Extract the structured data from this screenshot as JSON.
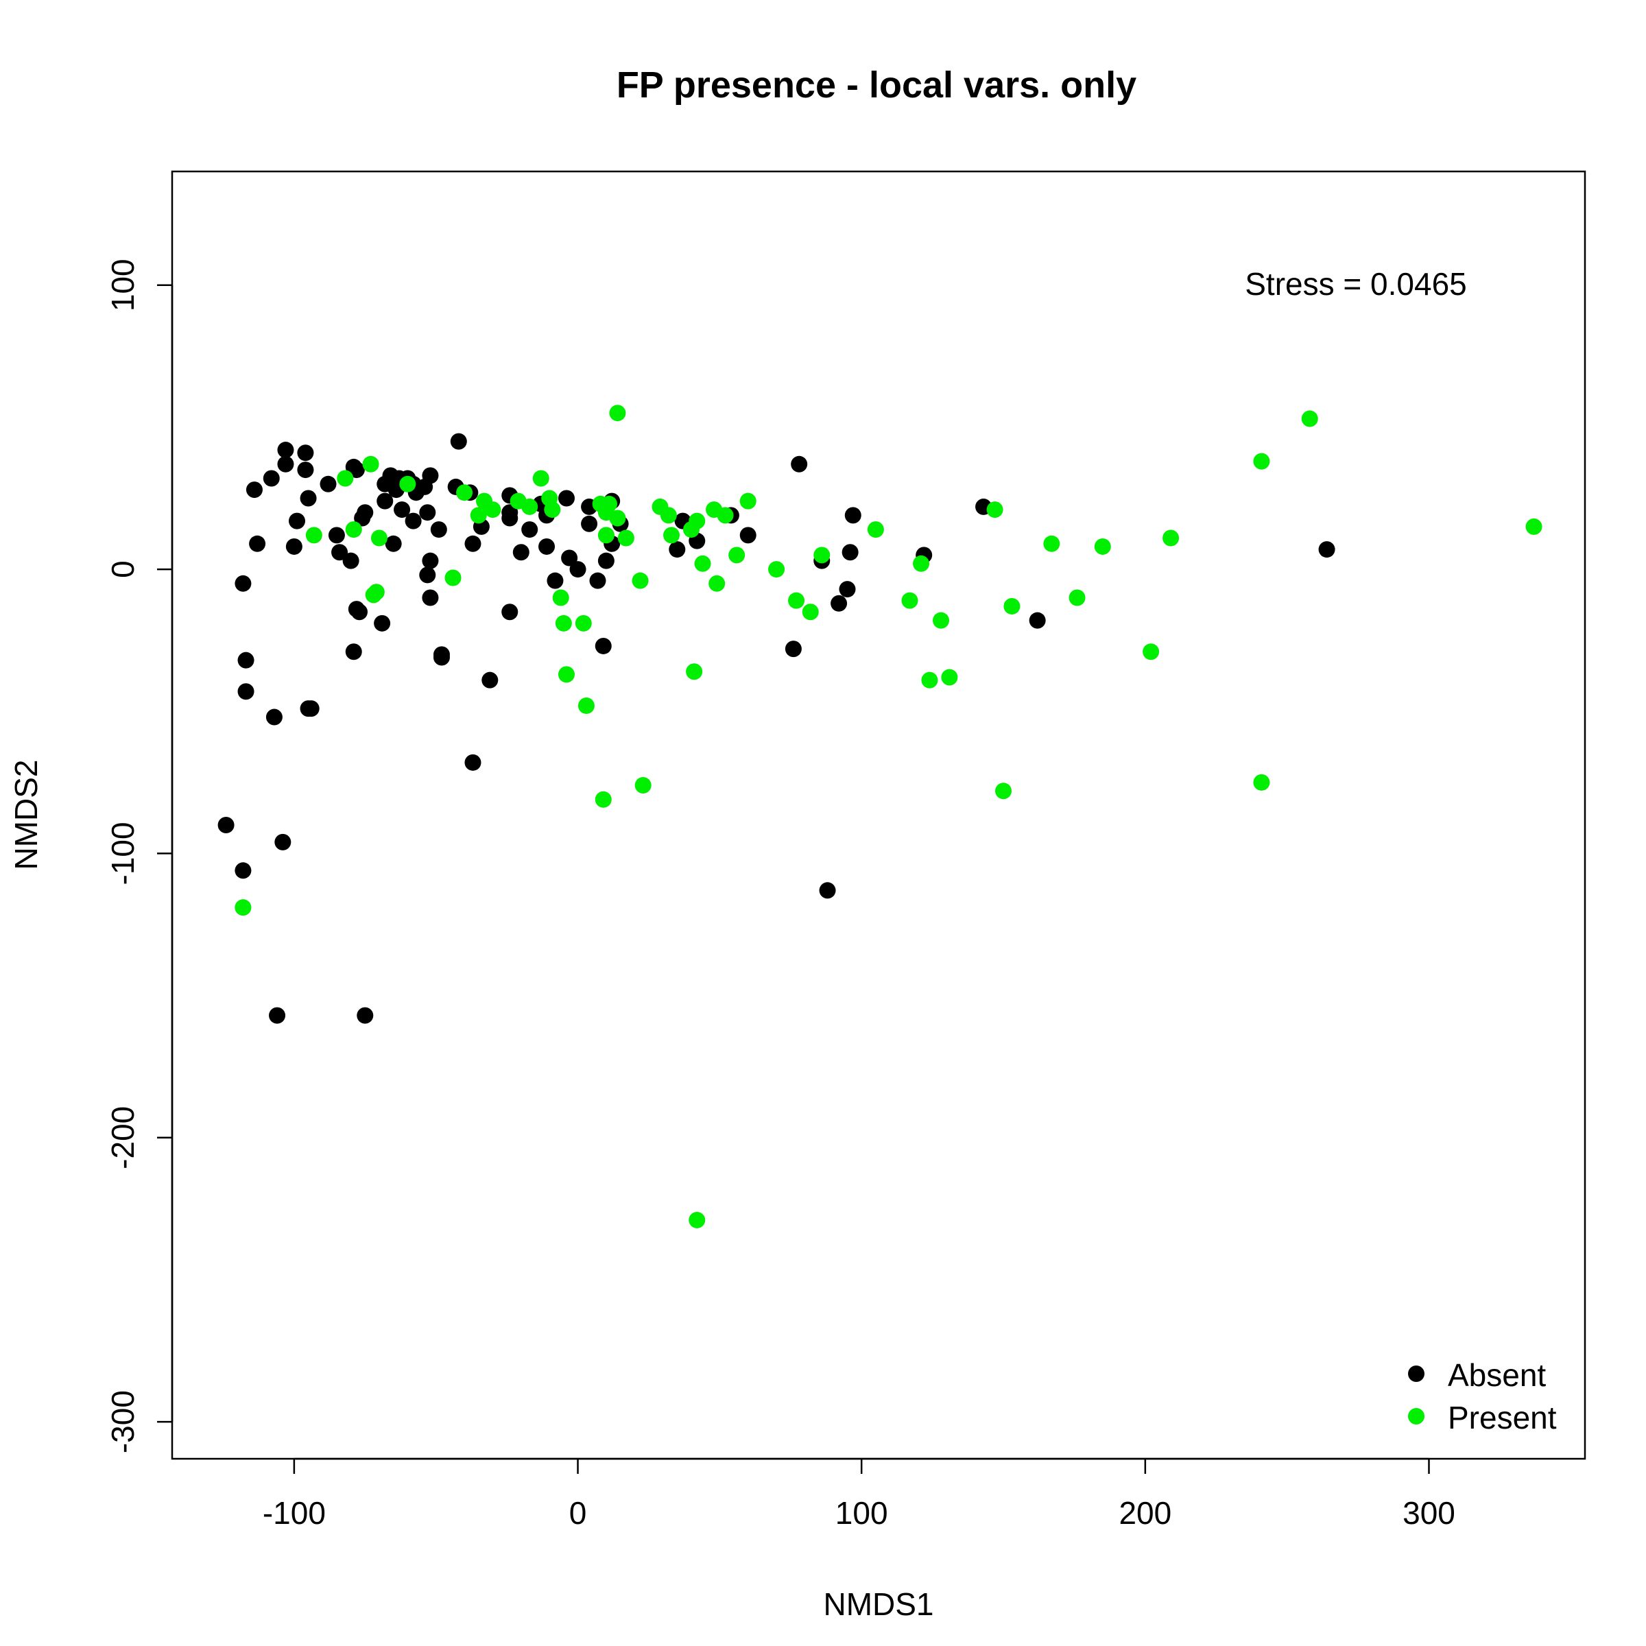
{
  "chart_data": {
    "type": "scatter",
    "title": "FP presence - local vars. only",
    "xlabel": "NMDS1",
    "ylabel": "NMDS2",
    "xlim": [
      -143,
      355
    ],
    "ylim": [
      -313,
      140
    ],
    "xticks": [
      -100,
      0,
      100,
      200,
      300
    ],
    "yticks": [
      -300,
      -200,
      -100,
      0,
      100
    ],
    "xtick_labels": [
      "-100",
      "0",
      "100",
      "200",
      "300"
    ],
    "ytick_labels": [
      "-300",
      "-200",
      "-100",
      "0",
      "100"
    ],
    "annotation": "Stress = 0.0465",
    "grid": false,
    "legend_position": "bottom-right",
    "series": [
      {
        "name": "Absent",
        "color": "#000000",
        "points": [
          [
            -103,
            42
          ],
          [
            -96,
            41
          ],
          [
            -108,
            32
          ],
          [
            -103,
            37
          ],
          [
            -96,
            35
          ],
          [
            -114,
            28
          ],
          [
            -95,
            25
          ],
          [
            -99,
            17
          ],
          [
            -113,
            9
          ],
          [
            -100,
            8
          ],
          [
            -88,
            30
          ],
          [
            -85,
            12
          ],
          [
            -80,
            3
          ],
          [
            -84,
            6
          ],
          [
            -78,
            35
          ],
          [
            -76,
            18
          ],
          [
            -75,
            20
          ],
          [
            -79,
            36
          ],
          [
            -68,
            30
          ],
          [
            -66,
            33
          ],
          [
            -64,
            28
          ],
          [
            -68,
            24
          ],
          [
            -63,
            32
          ],
          [
            -60,
            32
          ],
          [
            -58,
            30
          ],
          [
            -57,
            27
          ],
          [
            -62,
            21
          ],
          [
            -58,
            17
          ],
          [
            -54,
            29
          ],
          [
            -53,
            20
          ],
          [
            -52,
            33
          ],
          [
            -49,
            14
          ],
          [
            -65,
            9
          ],
          [
            -52,
            3
          ],
          [
            -53,
            -2
          ],
          [
            -52,
            -10
          ],
          [
            -48,
            -30
          ],
          [
            -48,
            -31
          ],
          [
            -42,
            45
          ],
          [
            -43,
            29
          ],
          [
            -38,
            27
          ],
          [
            -34,
            15
          ],
          [
            -37,
            9
          ],
          [
            -31,
            -39
          ],
          [
            -37,
            -68
          ],
          [
            -24,
            26
          ],
          [
            -24,
            20
          ],
          [
            -24,
            18
          ],
          [
            -17,
            14
          ],
          [
            -20,
            6
          ],
          [
            -13,
            23
          ],
          [
            -11,
            19
          ],
          [
            -11,
            8
          ],
          [
            -8,
            -4
          ],
          [
            -4,
            25
          ],
          [
            -3,
            4
          ],
          [
            0,
            0
          ],
          [
            4,
            22
          ],
          [
            4,
            16
          ],
          [
            7,
            -4
          ],
          [
            9,
            -27
          ],
          [
            10,
            3
          ],
          [
            12,
            24
          ],
          [
            12,
            9
          ],
          [
            15,
            16
          ],
          [
            35,
            7
          ],
          [
            37,
            17
          ],
          [
            42,
            10
          ],
          [
            54,
            19
          ],
          [
            60,
            12
          ],
          [
            76,
            -28
          ],
          [
            78,
            37
          ],
          [
            86,
            3
          ],
          [
            92,
            -12
          ],
          [
            95,
            -7
          ],
          [
            96,
            6
          ],
          [
            97,
            19
          ],
          [
            122,
            5
          ],
          [
            143,
            22
          ],
          [
            162,
            -18
          ],
          [
            264,
            7
          ],
          [
            -118,
            -5
          ],
          [
            -117,
            -32
          ],
          [
            -117,
            -43
          ],
          [
            -107,
            -52
          ],
          [
            -95,
            -49
          ],
          [
            -94,
            -49
          ],
          [
            -79,
            -29
          ],
          [
            -78,
            -14
          ],
          [
            -77,
            -15
          ],
          [
            -69,
            -19
          ],
          [
            -124,
            -90
          ],
          [
            -118,
            -106
          ],
          [
            -104,
            -96
          ],
          [
            -106,
            -157
          ],
          [
            -75,
            -157
          ],
          [
            -24,
            -15
          ],
          [
            88,
            -113
          ]
        ]
      },
      {
        "name": "Present",
        "color": "#00ee00",
        "points": [
          [
            14,
            55
          ],
          [
            258,
            53
          ],
          [
            241,
            38
          ],
          [
            -73,
            37
          ],
          [
            -82,
            32
          ],
          [
            -60,
            30
          ],
          [
            -40,
            27
          ],
          [
            -33,
            24
          ],
          [
            -30,
            21
          ],
          [
            -35,
            19
          ],
          [
            -21,
            24
          ],
          [
            -13,
            32
          ],
          [
            -10,
            25
          ],
          [
            -17,
            22
          ],
          [
            -9,
            21
          ],
          [
            -6,
            -10
          ],
          [
            -5,
            -19
          ],
          [
            -4,
            -37
          ],
          [
            2,
            -19
          ],
          [
            3,
            -48
          ],
          [
            8,
            23
          ],
          [
            11,
            23
          ],
          [
            10,
            20
          ],
          [
            14,
            18
          ],
          [
            10,
            12
          ],
          [
            17,
            11
          ],
          [
            22,
            -4
          ],
          [
            29,
            22
          ],
          [
            32,
            19
          ],
          [
            33,
            12
          ],
          [
            40,
            14
          ],
          [
            42,
            17
          ],
          [
            44,
            2
          ],
          [
            48,
            21
          ],
          [
            49,
            -5
          ],
          [
            52,
            19
          ],
          [
            56,
            5
          ],
          [
            60,
            24
          ],
          [
            70,
            0
          ],
          [
            77,
            -11
          ],
          [
            82,
            -15
          ],
          [
            86,
            5
          ],
          [
            105,
            14
          ],
          [
            117,
            -11
          ],
          [
            121,
            2
          ],
          [
            124,
            -39
          ],
          [
            128,
            -18
          ],
          [
            131,
            -38
          ],
          [
            147,
            21
          ],
          [
            150,
            -78
          ],
          [
            153,
            -13
          ],
          [
            167,
            9
          ],
          [
            176,
            -10
          ],
          [
            185,
            8
          ],
          [
            202,
            -29
          ],
          [
            209,
            11
          ],
          [
            337,
            15
          ],
          [
            241,
            -75
          ],
          [
            -79,
            14
          ],
          [
            -70,
            11
          ],
          [
            -93,
            12
          ],
          [
            -72,
            -9
          ],
          [
            -71,
            -8
          ],
          [
            -44,
            -3
          ],
          [
            9,
            -81
          ],
          [
            23,
            -76
          ],
          [
            41,
            -36
          ],
          [
            42,
            -229
          ],
          [
            -118,
            -119
          ]
        ]
      }
    ]
  }
}
